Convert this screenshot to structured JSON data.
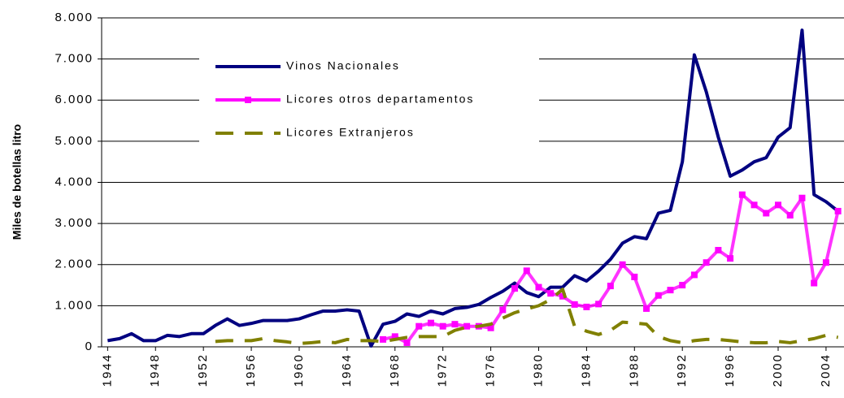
{
  "chart_data": {
    "type": "line",
    "y_label": "Miles de botellas litro",
    "x": [
      1944,
      1945,
      1946,
      1947,
      1948,
      1949,
      1950,
      1951,
      1952,
      1953,
      1954,
      1955,
      1956,
      1957,
      1958,
      1959,
      1960,
      1961,
      1962,
      1963,
      1964,
      1965,
      1966,
      1967,
      1968,
      1969,
      1970,
      1971,
      1972,
      1973,
      1974,
      1975,
      1976,
      1977,
      1978,
      1979,
      1980,
      1981,
      1982,
      1983,
      1984,
      1985,
      1986,
      1987,
      1988,
      1989,
      1990,
      1991,
      1992,
      1993,
      1994,
      1995,
      1996,
      1997,
      1998,
      1999,
      2000,
      2001,
      2002,
      2003,
      2004,
      2005
    ],
    "xlim": [
      1943.5,
      2005.5
    ],
    "xticks": [
      1944,
      1948,
      1952,
      1956,
      1960,
      1964,
      1968,
      1972,
      1976,
      1980,
      1984,
      1988,
      1992,
      1996,
      2000,
      2004
    ],
    "ylim": [
      0,
      8000
    ],
    "yticks": [
      0,
      {
        "value": 1000,
        "label": "1.000"
      },
      {
        "value": 2000,
        "label": "2.000"
      },
      {
        "value": 3000,
        "label": "3.000"
      },
      {
        "value": 4000,
        "label": "4.000"
      },
      {
        "value": 5000,
        "label": "5.000"
      },
      {
        "value": 6000,
        "label": "6.000"
      },
      {
        "value": 7000,
        "label": "7.000"
      },
      {
        "value": 8000,
        "label": "8.000"
      }
    ],
    "grid": true,
    "series": [
      {
        "name": "Vinos Nacionales",
        "color": "#000080",
        "values": [
          150,
          200,
          320,
          150,
          150,
          280,
          250,
          320,
          320,
          520,
          680,
          520,
          570,
          640,
          640,
          640,
          680,
          780,
          870,
          870,
          900,
          870,
          20,
          550,
          620,
          800,
          740,
          870,
          800,
          930,
          960,
          1030,
          1200,
          1350,
          1550,
          1320,
          1220,
          1450,
          1450,
          1730,
          1600,
          1840,
          2130,
          2520,
          2680,
          2630,
          3250,
          3320,
          4500,
          7100,
          6200,
          5100,
          4150,
          4300,
          4500,
          4600,
          5100,
          5330,
          7700,
          3700,
          3530,
          3300
        ]
      },
      {
        "name": "Licores otros departamentos",
        "color": "#ff00ff",
        "values": [
          null,
          null,
          null,
          null,
          null,
          null,
          null,
          null,
          null,
          null,
          null,
          null,
          null,
          null,
          null,
          null,
          null,
          null,
          null,
          null,
          null,
          null,
          null,
          180,
          250,
          100,
          500,
          580,
          500,
          550,
          500,
          500,
          460,
          900,
          1420,
          1850,
          1450,
          1300,
          1230,
          1030,
          970,
          1040,
          1480,
          2000,
          1700,
          930,
          1250,
          1380,
          1500,
          1750,
          2050,
          2350,
          2150,
          3700,
          3450,
          3250,
          3450,
          3200,
          3620,
          1550,
          2050,
          3300
        ]
      },
      {
        "name": "Licores Extranjeros",
        "color": "#808000",
        "values": [
          null,
          null,
          null,
          null,
          null,
          null,
          null,
          null,
          null,
          130,
          150,
          150,
          150,
          200,
          150,
          120,
          80,
          100,
          130,
          100,
          180,
          150,
          150,
          130,
          180,
          230,
          250,
          250,
          250,
          400,
          480,
          500,
          550,
          700,
          830,
          920,
          1000,
          1150,
          1400,
          500,
          380,
          300,
          400,
          600,
          580,
          550,
          250,
          150,
          100,
          150,
          180,
          180,
          150,
          120,
          100,
          100,
          130,
          100,
          150,
          200,
          280,
          230
        ]
      }
    ]
  }
}
